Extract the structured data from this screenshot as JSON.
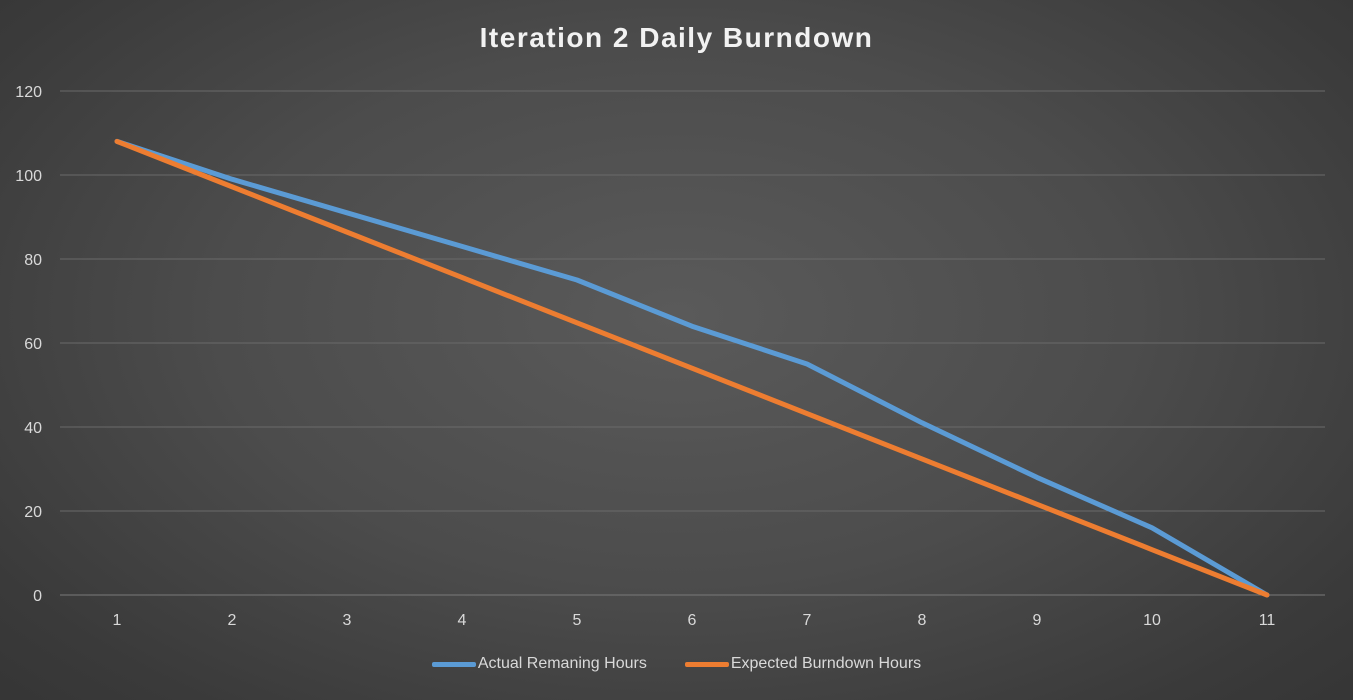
{
  "chart_data": {
    "type": "line",
    "title": "Iteration 2 Daily Burndown",
    "xlabel": "",
    "ylabel": "",
    "x": [
      1,
      2,
      3,
      4,
      5,
      6,
      7,
      8,
      9,
      10,
      11
    ],
    "x_ticks": [
      "1",
      "2",
      "3",
      "4",
      "5",
      "6",
      "7",
      "8",
      "9",
      "10",
      "11"
    ],
    "y_ticks": [
      "0",
      "20",
      "40",
      "60",
      "80",
      "100",
      "120"
    ],
    "ylim": [
      0,
      120
    ],
    "grid": "horizontal",
    "legend_position": "bottom",
    "series": [
      {
        "name": "Actual Remaning Hours",
        "color": "#5b9bd5",
        "values": [
          108,
          99,
          91,
          83,
          75,
          64,
          55,
          41,
          28,
          16,
          0
        ]
      },
      {
        "name": "Expected Burndown Hours",
        "color": "#ed7d31",
        "values": [
          108,
          97.2,
          86.4,
          75.6,
          64.8,
          54,
          43.2,
          32.4,
          21.6,
          10.8,
          0
        ]
      }
    ]
  }
}
